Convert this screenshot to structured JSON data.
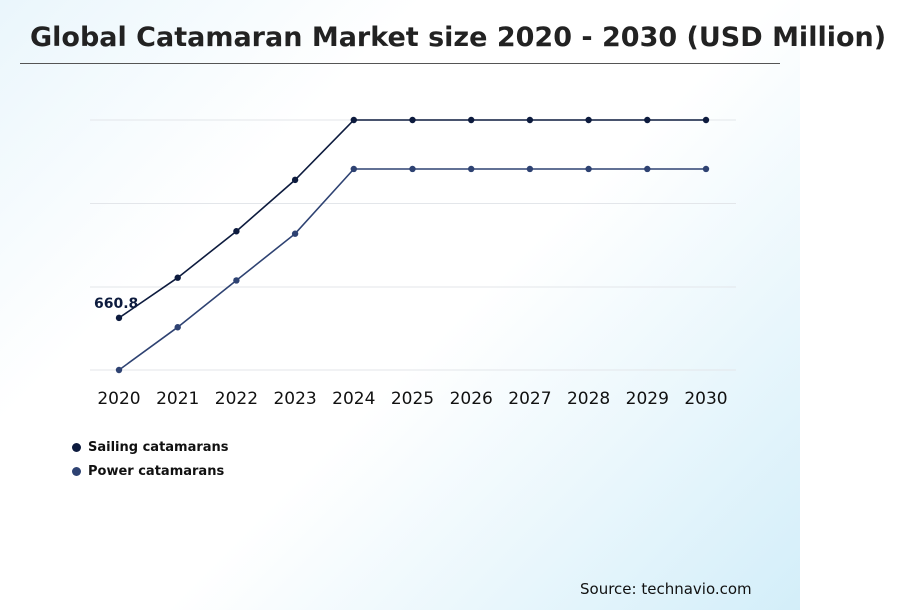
{
  "title": "Global Catamaran Market size 2020 - 2030 (USD Million)",
  "source": "Source: technavio.com",
  "colors": {
    "sailing": "#0d1b3e",
    "power": "#2e4272",
    "grid": "#e3e6ea"
  },
  "chart_data": {
    "type": "line",
    "title": "Global Catamaran Market size 2020 - 2030 (USD Million)",
    "xlabel": "",
    "ylabel": "",
    "x": [
      "2020",
      "2021",
      "2022",
      "2023",
      "2024",
      "2025",
      "2026",
      "2027",
      "2028",
      "2029",
      "2030"
    ],
    "ylim": [
      580,
      960
    ],
    "grid": true,
    "legend_position": "bottom-left",
    "series": [
      {
        "name": "Sailing catamarans",
        "values": [
          660.8,
          719.5,
          787.4,
          862.5,
          950,
          950,
          950,
          950,
          950,
          950,
          950
        ]
      },
      {
        "name": "Power catamarans",
        "values": [
          584.6,
          647.1,
          715.5,
          783.8,
          878.4,
          878.4,
          878.4,
          878.4,
          878.4,
          878.4,
          878.4
        ]
      }
    ],
    "annotations": [
      {
        "series": "Sailing catamarans",
        "x": "2020",
        "text": "660.8"
      }
    ]
  },
  "legend": [
    {
      "label": "Sailing catamarans"
    },
    {
      "label": "Power catamarans"
    }
  ]
}
